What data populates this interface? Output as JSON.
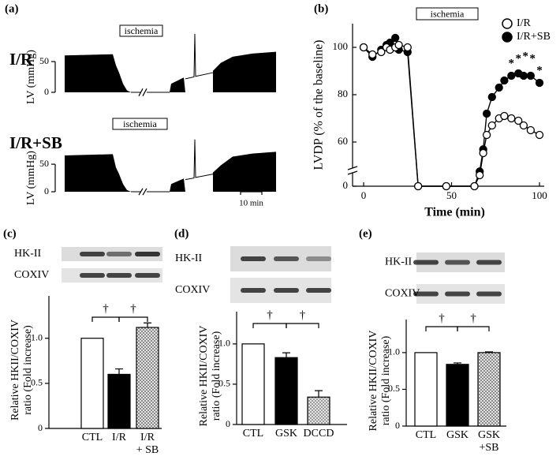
{
  "chart_data": [
    {
      "type": "trace",
      "panel_label": "(a)",
      "ylabel": "LV (mmHg)",
      "yticks": [
        0,
        50
      ],
      "ylim": [
        -8,
        86
      ],
      "traces": [
        {
          "name": "I/R",
          "annotation": "ischemia"
        },
        {
          "name": "I/R+SB",
          "annotation": "ischemia"
        }
      ],
      "scale_bar": "10 min"
    },
    {
      "type": "line",
      "panel_label": "(b)",
      "annotation": "ischemia",
      "xlabel": "Time (min)",
      "ylabel": "LVDP (% of the baseline)",
      "x": [
        0,
        5,
        10,
        13,
        15,
        18,
        20,
        25,
        31,
        47,
        63,
        66,
        68,
        70,
        73,
        77,
        80,
        84,
        88,
        91,
        95,
        100
      ],
      "series": [
        {
          "name": "I/R",
          "color": "#000000",
          "marker_fill": "#ffffff",
          "values": [
            100,
            97,
            98,
            100,
            99,
            100,
            101,
            100,
            0,
            0,
            0,
            15,
            45,
            63,
            67,
            70,
            71,
            70,
            69,
            67,
            65,
            63
          ]
        },
        {
          "name": "I/R+SB",
          "color": "#000000",
          "marker_fill": "#000000",
          "values": [
            100,
            96,
            99,
            101,
            102,
            104,
            99,
            98,
            0,
            0,
            0,
            20,
            50,
            72,
            79,
            83,
            86,
            88,
            89,
            88,
            88,
            85
          ]
        }
      ],
      "xlim": [
        -6.3,
        102.7
      ],
      "xticks": [
        0,
        50,
        100
      ],
      "ylim": [
        0,
        110
      ],
      "yticks": [
        0,
        60,
        80,
        100
      ],
      "axis_break": true,
      "legend": "upper right",
      "annotations": [
        {
          "x": 84,
          "y": 93,
          "text": "*"
        },
        {
          "x": 88,
          "y": 95,
          "text": "*"
        },
        {
          "x": 92,
          "y": 96,
          "text": "*"
        },
        {
          "x": 96,
          "y": 95,
          "text": "*"
        },
        {
          "x": 100,
          "y": 90,
          "text": "*"
        }
      ]
    },
    {
      "type": "bar",
      "panel_label": "(c)",
      "blots": [
        "HK-II",
        "COXIV"
      ],
      "ylabel": [
        "Relative HKII/COXIV",
        "ratio (Fold increase)"
      ],
      "categories": [
        "CTL",
        "I/R",
        [
          "I/R",
          "+ SB"
        ]
      ],
      "values": [
        1.0,
        0.6,
        1.12
      ],
      "errors": [
        0,
        0.06,
        0.05
      ],
      "colors": [
        "#ffffff",
        "#000000",
        "#777777"
      ],
      "hatch": [
        false,
        false,
        true
      ],
      "ylim": [
        0,
        1.47
      ],
      "yticks": [
        0,
        0.5,
        {
          "value": 1,
          "label": "1.0"
        }
      ],
      "brackets": [
        {
          "from": 0,
          "to": 1,
          "text": "†"
        },
        {
          "from": 1,
          "to": 2,
          "text": "†"
        }
      ]
    },
    {
      "type": "bar",
      "panel_label": "(d)",
      "blots": [
        "HK-II",
        "COXIV"
      ],
      "ylabel": [
        "Relative HKII/COXIV",
        "ratio (Fold increase)"
      ],
      "categories": [
        "CTL",
        "GSK",
        "DCCD"
      ],
      "values": [
        1.0,
        0.83,
        0.34
      ],
      "errors": [
        0,
        0.06,
        0.08
      ],
      "colors": [
        "#ffffff",
        "#000000",
        "#888888"
      ],
      "hatch": [
        false,
        false,
        true
      ],
      "ylim": [
        0,
        1.4
      ],
      "yticks": [
        0,
        0.5,
        {
          "value": 1,
          "label": "1.0"
        }
      ],
      "brackets": [
        {
          "from": 0,
          "to": 1,
          "text": "†"
        },
        {
          "from": 1,
          "to": 2,
          "text": "†"
        }
      ]
    },
    {
      "type": "bar",
      "panel_label": "(e)",
      "blots": [
        "HK-II",
        "COXIV"
      ],
      "ylabel": [
        "Relative HKII/COXIV",
        "ratio (Fold increase)"
      ],
      "categories": [
        "CTL",
        "GSK",
        [
          "GSK",
          "+SB"
        ]
      ],
      "values": [
        1.0,
        0.84,
        1.0
      ],
      "errors": [
        0,
        0.02,
        0.01
      ],
      "colors": [
        "#ffffff",
        "#000000",
        "#777777"
      ],
      "hatch": [
        false,
        false,
        true
      ],
      "ylim": [
        0,
        1.45
      ],
      "yticks": [
        0,
        0.5,
        {
          "value": 1,
          "label": "1.0"
        }
      ],
      "brackets": [
        {
          "from": 0,
          "to": 1,
          "text": "†"
        },
        {
          "from": 1,
          "to": 2,
          "text": "†"
        }
      ]
    }
  ]
}
